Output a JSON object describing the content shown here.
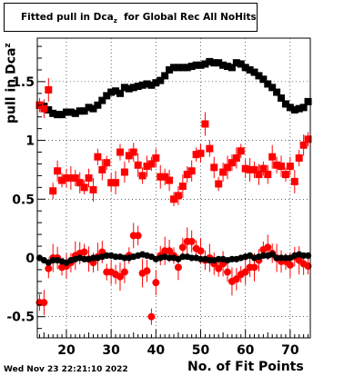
{
  "title": {
    "main": "Fitted pull in Dca",
    "sub": "z",
    "rest": "  for Global Rec All NoHits"
  },
  "footer_date": "Wed Nov 23 22:21:10 2022",
  "chart_data": {
    "type": "scatter",
    "xlabel": "No. of Fit Points",
    "ylabel_main": "pull in Dca",
    "ylabel_sub": "z",
    "xlim": [
      13.5,
      74.5
    ],
    "ylim": [
      -0.68,
      1.87
    ],
    "xticks": [
      20,
      30,
      40,
      50,
      60,
      70
    ],
    "yticks": [
      -0.5,
      0,
      0.5,
      1,
      1.5
    ],
    "ytick_labels": [
      "-0.5",
      "0",
      "0.5",
      "1",
      "1.5"
    ],
    "grid": true,
    "series": [
      {
        "marker": "square-black",
        "color": "#000000",
        "x": [
          14,
          15,
          16,
          17,
          18,
          19,
          20,
          21,
          22,
          23,
          24,
          25,
          26,
          27,
          28,
          29,
          30,
          31,
          32,
          33,
          34,
          35,
          36,
          37,
          38,
          39,
          40,
          41,
          42,
          43,
          44,
          45,
          46,
          47,
          48,
          49,
          50,
          51,
          52,
          53,
          54,
          55,
          56,
          57,
          58,
          59,
          60,
          61,
          62,
          63,
          64,
          65,
          66,
          67,
          68,
          69,
          70,
          71,
          72,
          73,
          74
        ],
        "y": [
          1.3,
          1.29,
          1.26,
          1.23,
          1.22,
          1.22,
          1.24,
          1.24,
          1.23,
          1.25,
          1.25,
          1.28,
          1.27,
          1.3,
          1.34,
          1.38,
          1.41,
          1.42,
          1.4,
          1.45,
          1.44,
          1.45,
          1.46,
          1.47,
          1.48,
          1.47,
          1.49,
          1.51,
          1.55,
          1.6,
          1.62,
          1.62,
          1.62,
          1.62,
          1.63,
          1.64,
          1.64,
          1.65,
          1.67,
          1.66,
          1.66,
          1.64,
          1.63,
          1.62,
          1.66,
          1.65,
          1.62,
          1.6,
          1.58,
          1.55,
          1.52,
          1.48,
          1.45,
          1.41,
          1.36,
          1.31,
          1.28,
          1.26,
          1.27,
          1.28,
          1.33
        ]
      },
      {
        "marker": "square-red",
        "color": "#ff0000",
        "x": [
          14,
          15,
          16,
          17,
          18,
          19,
          20,
          21,
          22,
          23,
          24,
          25,
          26,
          27,
          28,
          29,
          30,
          31,
          32,
          33,
          34,
          35,
          36,
          37,
          38,
          39,
          40,
          41,
          42,
          43,
          44,
          45,
          46,
          47,
          48,
          49,
          50,
          51,
          52,
          53,
          54,
          55,
          56,
          57,
          58,
          59,
          60,
          61,
          62,
          63,
          64,
          65,
          66,
          67,
          68,
          69,
          70,
          71,
          72,
          73,
          74
        ],
        "y": [
          1.3,
          1.27,
          1.43,
          0.57,
          0.74,
          0.66,
          0.68,
          0.68,
          0.68,
          0.64,
          0.6,
          0.68,
          0.58,
          0.86,
          0.75,
          0.81,
          0.64,
          0.64,
          0.9,
          0.73,
          0.87,
          0.9,
          0.79,
          0.7,
          0.78,
          0.8,
          0.85,
          0.69,
          0.69,
          0.66,
          0.5,
          0.53,
          0.61,
          0.71,
          0.74,
          0.88,
          0.89,
          1.14,
          0.93,
          0.77,
          0.63,
          0.73,
          0.77,
          0.81,
          0.85,
          0.91,
          0.76,
          0.75,
          0.75,
          0.71,
          0.76,
          0.71,
          0.86,
          0.79,
          0.78,
          0.71,
          0.78,
          0.65,
          0.85,
          0.96,
          1.01
        ]
      },
      {
        "marker": "circle-red",
        "color": "#ff0000",
        "x": [
          14,
          15,
          16,
          17,
          18,
          19,
          20,
          21,
          22,
          23,
          24,
          25,
          26,
          27,
          28,
          29,
          30,
          31,
          32,
          33,
          34,
          35,
          36,
          37,
          38,
          39,
          40,
          41,
          42,
          43,
          44,
          45,
          46,
          47,
          48,
          49,
          50,
          51,
          52,
          53,
          54,
          55,
          56,
          57,
          58,
          59,
          60,
          61,
          62,
          63,
          64,
          65,
          66,
          67,
          68,
          69,
          70,
          71,
          72,
          73,
          74
        ],
        "y": [
          -0.38,
          -0.38,
          -0.09,
          0.0,
          0.0,
          -0.08,
          -0.07,
          -0.04,
          0.02,
          0.04,
          0.05,
          -0.01,
          -0.04,
          0.01,
          0.05,
          -0.12,
          -0.12,
          -0.14,
          -0.16,
          -0.12,
          0.02,
          0.19,
          0.19,
          -0.13,
          -0.11,
          -0.5,
          -0.21,
          0.02,
          0.06,
          0.06,
          0.02,
          -0.08,
          0.09,
          0.14,
          0.14,
          0.08,
          0.06,
          -0.02,
          0.0,
          -0.05,
          -0.09,
          -0.05,
          -0.12,
          -0.2,
          -0.18,
          -0.14,
          -0.12,
          -0.08,
          -0.08,
          -0.02,
          0.07,
          0.09,
          0.04,
          0.0,
          -0.03,
          -0.03,
          -0.06,
          0.01,
          -0.02,
          -0.05,
          -0.07
        ]
      },
      {
        "marker": "circle-black",
        "color": "#000000",
        "x": [
          14,
          15,
          16,
          17,
          18,
          19,
          20,
          21,
          22,
          23,
          24,
          25,
          26,
          27,
          28,
          29,
          30,
          31,
          32,
          33,
          34,
          35,
          36,
          37,
          38,
          39,
          40,
          41,
          42,
          43,
          44,
          45,
          46,
          47,
          48,
          49,
          50,
          51,
          52,
          53,
          54,
          55,
          56,
          57,
          58,
          59,
          60,
          61,
          62,
          63,
          64,
          65,
          66,
          67,
          68,
          69,
          70,
          71,
          72,
          73,
          74
        ],
        "y": [
          0.0,
          -0.02,
          -0.04,
          -0.02,
          -0.02,
          -0.03,
          -0.04,
          -0.02,
          -0.01,
          0.0,
          -0.01,
          -0.01,
          0.0,
          0.0,
          0.01,
          0.02,
          0.02,
          0.01,
          0.01,
          0.0,
          0.0,
          0.01,
          0.02,
          0.03,
          0.02,
          0.01,
          -0.01,
          0.0,
          0.01,
          0.0,
          0.0,
          -0.01,
          0.01,
          0.01,
          0.0,
          0.0,
          -0.01,
          -0.01,
          -0.02,
          -0.02,
          -0.01,
          -0.01,
          -0.02,
          -0.01,
          -0.01,
          0.0,
          0.01,
          0.02,
          0.0,
          0.01,
          0.02,
          0.02,
          0.03,
          0.0,
          0.0,
          0.0,
          0.0,
          0.02,
          0.03,
          0.02,
          0.02
        ]
      }
    ]
  }
}
